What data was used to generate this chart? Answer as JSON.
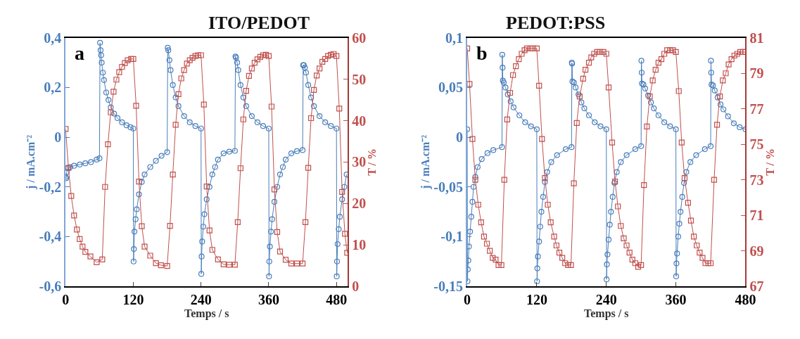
{
  "chart_data": [
    {
      "type": "line",
      "title": "ITO/PEDOT",
      "xlabel": "Temps / s",
      "ylabel": "j / mA.cm⁻²",
      "y2label": "T / %",
      "annotations": [
        "a"
      ],
      "xlim": [
        0,
        500
      ],
      "xticks": [
        0,
        120,
        240,
        360,
        480
      ],
      "ylim": [
        -0.6,
        0.4
      ],
      "yticks": [
        {
          "value": -0.6,
          "label": "-0,6"
        },
        {
          "value": -0.4,
          "label": "-0,4"
        },
        {
          "value": -0.2,
          "label": "-0,2"
        },
        0,
        {
          "value": 0.2,
          "label": "0,2"
        },
        {
          "value": 0.4,
          "label": "0,4"
        }
      ],
      "y2lim": [
        0,
        60
      ],
      "y2ticks": [
        0,
        10,
        20,
        30,
        40,
        50,
        60
      ],
      "series": [
        {
          "color": "#4a7ebb",
          "marker": "circle",
          "x": [
            0,
            1,
            2,
            4,
            8,
            15,
            25,
            35,
            45,
            55,
            60,
            61,
            62,
            63,
            64,
            66,
            68,
            72,
            76,
            80,
            86,
            92,
            100,
            108,
            115,
            120,
            120.5,
            121,
            122,
            124,
            126,
            130,
            135,
            140,
            150,
            160,
            170,
            180,
            181,
            182,
            184,
            186,
            190,
            195,
            200,
            210,
            220,
            230,
            240,
            240.5,
            241,
            242,
            244,
            246,
            250,
            255,
            260,
            265,
            270,
            280,
            290,
            300,
            301,
            302,
            304,
            306,
            310,
            315,
            320,
            330,
            340,
            350,
            360,
            360.5,
            361,
            362,
            364,
            366,
            370,
            375,
            380,
            385,
            390,
            400,
            410,
            420,
            421,
            422,
            424,
            426,
            430,
            435,
            440,
            450,
            460,
            470,
            480,
            480.5,
            481,
            482,
            484,
            486,
            490,
            494,
            498
          ],
          "values": [
            -0.16,
            -0.165,
            -0.14,
            -0.125,
            -0.12,
            -0.115,
            -0.11,
            -0.105,
            -0.1,
            -0.09,
            -0.085,
            0.38,
            0.35,
            0.33,
            0.3,
            0.26,
            0.23,
            0.18,
            0.15,
            0.12,
            0.095,
            0.077,
            0.06,
            0.048,
            0.04,
            0.035,
            -0.5,
            -0.45,
            -0.38,
            -0.33,
            -0.29,
            -0.23,
            -0.18,
            -0.15,
            -0.12,
            -0.095,
            -0.075,
            -0.06,
            0.36,
            0.35,
            0.31,
            0.27,
            0.21,
            0.16,
            0.125,
            0.085,
            0.06,
            0.045,
            0.035,
            -0.55,
            -0.48,
            -0.42,
            -0.36,
            -0.31,
            -0.25,
            -0.2,
            -0.15,
            -0.12,
            -0.09,
            -0.065,
            -0.058,
            -0.055,
            0.325,
            0.32,
            0.3,
            0.27,
            0.21,
            0.16,
            0.125,
            0.085,
            0.06,
            0.045,
            0.035,
            -0.56,
            -0.5,
            -0.44,
            -0.38,
            -0.33,
            -0.26,
            -0.2,
            -0.15,
            -0.12,
            -0.09,
            -0.065,
            -0.056,
            -0.052,
            0.29,
            0.29,
            0.28,
            0.26,
            0.21,
            0.16,
            0.125,
            0.085,
            0.06,
            0.045,
            0.035,
            -0.56,
            -0.5,
            -0.43,
            -0.37,
            -0.32,
            -0.25,
            -0.2,
            -0.15
          ]
        },
        {
          "color": "#c0504d",
          "marker": "square",
          "axis": "y2",
          "x": [
            0,
            5,
            10,
            15,
            20,
            25,
            30,
            35,
            44,
            55,
            65,
            70,
            75,
            80,
            85,
            90,
            95,
            100,
            105,
            110,
            116,
            120,
            125,
            130,
            135,
            140,
            150,
            160,
            169,
            180,
            185,
            190,
            195,
            200,
            205,
            210,
            215,
            220,
            225,
            230,
            235,
            240,
            245,
            250,
            255,
            260,
            270,
            280,
            290,
            300,
            305,
            310,
            315,
            320,
            325,
            330,
            335,
            340,
            345,
            350,
            355,
            360,
            365,
            370,
            375,
            380,
            390,
            400,
            410,
            420,
            425,
            430,
            435,
            440,
            445,
            450,
            455,
            460,
            465,
            470,
            475,
            480,
            485,
            490,
            495,
            499
          ],
          "values": [
            38,
            28.6,
            21.8,
            17.1,
            13.7,
            11.4,
            9.6,
            8.3,
            7.2,
            5.8,
            6.5,
            24,
            34.3,
            42,
            47,
            49.9,
            51.7,
            53,
            53.9,
            54.6,
            54.9,
            54.9,
            43.6,
            25.3,
            14.5,
            9.6,
            7.4,
            5.6,
            5.1,
            4.9,
            14.6,
            27,
            39,
            46.4,
            50.2,
            52.2,
            53.8,
            54.6,
            55.2,
            55.6,
            55.8,
            55.8,
            43.9,
            24.1,
            13.5,
            8.8,
            6.5,
            5.3,
            5.2,
            5.2,
            15.5,
            28.5,
            40.3,
            47.2,
            50.8,
            52.6,
            54,
            54.8,
            55.4,
            55.8,
            55.9,
            55.6,
            43.4,
            23.4,
            13.1,
            8.4,
            6.4,
            5.5,
            5.5,
            5.5,
            15.5,
            28.6,
            40.6,
            47.4,
            50.9,
            52.6,
            54.2,
            54.9,
            55.6,
            55.9,
            56.1,
            55.6,
            42.9,
            22.8,
            12.7,
            8.1
          ]
        }
      ]
    },
    {
      "type": "line",
      "title": "PEDOT:PSS",
      "xlabel": "Temps / s",
      "ylabel": "j / mA.cm⁻²",
      "y2label": "T / %",
      "annotations": [
        "b"
      ],
      "xlim": [
        0,
        480
      ],
      "xticks": [
        0,
        120,
        240,
        360,
        480
      ],
      "ylim": [
        -0.15,
        0.1
      ],
      "yticks": [
        {
          "value": -0.15,
          "label": "-0,15"
        },
        {
          "value": -0.1,
          "label": "-0,1"
        },
        {
          "value": -0.05,
          "label": "-0,05"
        },
        0,
        {
          "value": 0.05,
          "label": "0,05"
        },
        {
          "value": 0.1,
          "label": "0,1"
        }
      ],
      "y2lim": [
        67,
        81
      ],
      "y2ticks": [
        67,
        69,
        71,
        73,
        75,
        77,
        79,
        81
      ],
      "series": [
        {
          "color": "#4a7ebb",
          "marker": "circle",
          "x": [
            0,
            0.5,
            1,
            2,
            3,
            5,
            7,
            9,
            11,
            14,
            18,
            25,
            35,
            45,
            60,
            60.5,
            61,
            61.5,
            63,
            66,
            70,
            75,
            80,
            90,
            100,
            110,
            120,
            120.5,
            121,
            122,
            124,
            126,
            128,
            131,
            134,
            138,
            145,
            155,
            170,
            180,
            180.5,
            181,
            181.5,
            184,
            187,
            192,
            197,
            202,
            210,
            220,
            230,
            240,
            240.5,
            241,
            242,
            244,
            246,
            248,
            251,
            254,
            258,
            265,
            275,
            290,
            300,
            300.5,
            301,
            301.5,
            304,
            307,
            312,
            317,
            322,
            330,
            340,
            350,
            360,
            360.5,
            361,
            362,
            364,
            366,
            368,
            371,
            374,
            378,
            385,
            395,
            410,
            420,
            420.5,
            421,
            421.5,
            424,
            427,
            432,
            437,
            442,
            450,
            460,
            470,
            480
          ],
          "values": [
            0.008,
            -0.145,
            -0.133,
            -0.124,
            -0.11,
            -0.095,
            -0.08,
            -0.065,
            -0.05,
            -0.04,
            -0.03,
            -0.022,
            -0.016,
            -0.013,
            -0.01,
            0.083,
            0.07,
            0.057,
            0.055,
            0.05,
            0.043,
            0.036,
            0.03,
            0.022,
            0.015,
            0.011,
            0.008,
            -0.145,
            -0.132,
            -0.12,
            -0.105,
            -0.09,
            -0.075,
            -0.06,
            -0.045,
            -0.035,
            -0.025,
            -0.018,
            -0.012,
            -0.01,
            0.075,
            0.074,
            0.056,
            0.055,
            0.05,
            0.043,
            0.035,
            0.029,
            0.022,
            0.015,
            0.011,
            0.008,
            -0.143,
            -0.128,
            -0.118,
            -0.103,
            -0.088,
            -0.075,
            -0.06,
            -0.046,
            -0.035,
            -0.025,
            -0.018,
            -0.012,
            -0.009,
            0.077,
            0.065,
            0.054,
            0.053,
            0.049,
            0.042,
            0.035,
            0.029,
            0.022,
            0.015,
            0.011,
            0.008,
            -0.14,
            -0.127,
            -0.117,
            -0.1,
            -0.087,
            -0.075,
            -0.06,
            -0.046,
            -0.035,
            -0.025,
            -0.018,
            -0.012,
            -0.009,
            0.077,
            0.065,
            0.053,
            0.052,
            0.047,
            0.04,
            0.033,
            0.028,
            0.021,
            0.014,
            0.01,
            0.008
          ]
        },
        {
          "color": "#c0504d",
          "marker": "square",
          "axis": "y2",
          "x": [
            0,
            4,
            9,
            14,
            19,
            24,
            29,
            34,
            39,
            44,
            49,
            54,
            59,
            64,
            69,
            74,
            79,
            84,
            89,
            94,
            99,
            103,
            109,
            114,
            120,
            124,
            129,
            134,
            139,
            144,
            150,
            154,
            159,
            164,
            169,
            174,
            179,
            184,
            189,
            194,
            200,
            204,
            210,
            214,
            219,
            224,
            229,
            235,
            240,
            244,
            250,
            255,
            260,
            265,
            270,
            275,
            280,
            285,
            290,
            295,
            300,
            305,
            310,
            315,
            320,
            325,
            330,
            335,
            340,
            345,
            350,
            355,
            360,
            365,
            370,
            375,
            381,
            386,
            391,
            396,
            401,
            406,
            411,
            416,
            420,
            426,
            431,
            436,
            441,
            446,
            451,
            456,
            461,
            466,
            471,
            476,
            480
          ],
          "values": [
            80.4,
            78.4,
            75.3,
            73,
            71.6,
            70.6,
            69.8,
            69.4,
            69,
            68.6,
            68.5,
            68.2,
            68.2,
            73,
            76.4,
            77.9,
            78.9,
            79.4,
            79.8,
            80.1,
            80.3,
            80.4,
            80.4,
            80.4,
            80.4,
            78.3,
            75.3,
            73.1,
            71.6,
            70.6,
            69.8,
            69.3,
            68.9,
            68.6,
            68.3,
            68.2,
            68.2,
            72.8,
            76.2,
            77.7,
            78.7,
            79.2,
            79.6,
            79.9,
            80.1,
            80.2,
            80.2,
            80.2,
            80.1,
            78.2,
            75.1,
            72.9,
            71.5,
            70.4,
            69.7,
            69.3,
            68.9,
            68.5,
            68.3,
            68.1,
            68.2,
            72.7,
            76,
            77.7,
            78.6,
            79.2,
            79.6,
            79.8,
            80.1,
            80.3,
            80.3,
            80.3,
            80.2,
            78,
            75.1,
            73.1,
            71.7,
            70.7,
            69.8,
            69.3,
            68.9,
            68.6,
            68.3,
            68.3,
            68.3,
            73,
            76.1,
            77.7,
            78.6,
            79,
            79.5,
            79.8,
            80,
            80.1,
            80.2,
            80.2,
            80.2
          ]
        }
      ]
    }
  ]
}
